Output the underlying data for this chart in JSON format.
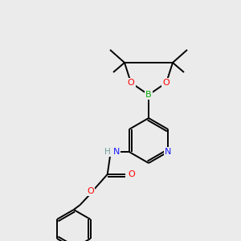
{
  "background_color": "#ebebeb",
  "atom_colors": {
    "C": "#000000",
    "H": "#6e9e9e",
    "N": "#1a1aff",
    "O": "#ff0000",
    "B": "#00aa00"
  },
  "bond_lw": 1.4,
  "figsize": [
    3.0,
    3.0
  ],
  "dpi": 100
}
